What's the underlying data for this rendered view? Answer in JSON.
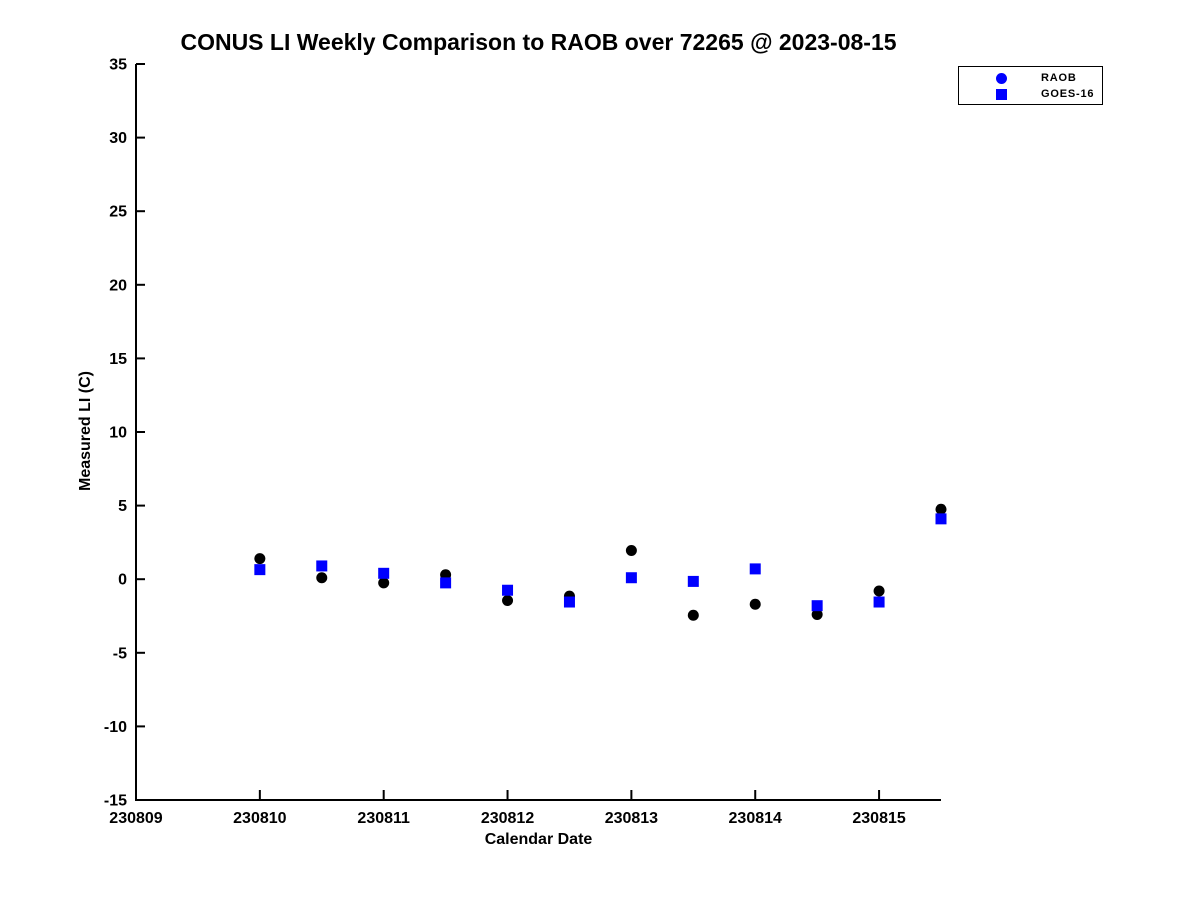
{
  "chart_data": {
    "type": "scatter",
    "title": "CONUS LI Weekly Comparison to RAOB over 72265 @ 2023-08-15",
    "xlabel": "Calendar Date",
    "ylabel": "Measured LI (C)",
    "xlim": [
      230809,
      230815.5
    ],
    "ylim": [
      -15,
      35
    ],
    "xticks": [
      230809,
      230810,
      230811,
      230812,
      230813,
      230814,
      230815
    ],
    "yticks": [
      35,
      30,
      25,
      20,
      15,
      10,
      5,
      0,
      -5,
      -10,
      -15
    ],
    "grid": false,
    "legend_position": "top-right",
    "x": [
      230810.0,
      230810.5,
      230811.0,
      230811.5,
      230812.0,
      230812.5,
      230813.0,
      230813.5,
      230814.0,
      230814.5,
      230815.0,
      230815.5
    ],
    "series": [
      {
        "name": "RAOB",
        "marker": "circle",
        "plot_color": "#000000",
        "legend_color": "#0000ff",
        "values": [
          1.4,
          0.1,
          -0.25,
          0.3,
          -1.45,
          -1.15,
          1.95,
          -2.45,
          -1.7,
          -2.4,
          -0.8,
          4.75
        ]
      },
      {
        "name": "GOES-16",
        "marker": "square",
        "plot_color": "#0000ff",
        "legend_color": "#0000ff",
        "values": [
          0.65,
          0.9,
          0.4,
          -0.25,
          -0.75,
          -1.55,
          0.1,
          -0.15,
          0.7,
          -1.8,
          -1.55,
          4.1
        ]
      }
    ],
    "axis_color": "#000000"
  }
}
